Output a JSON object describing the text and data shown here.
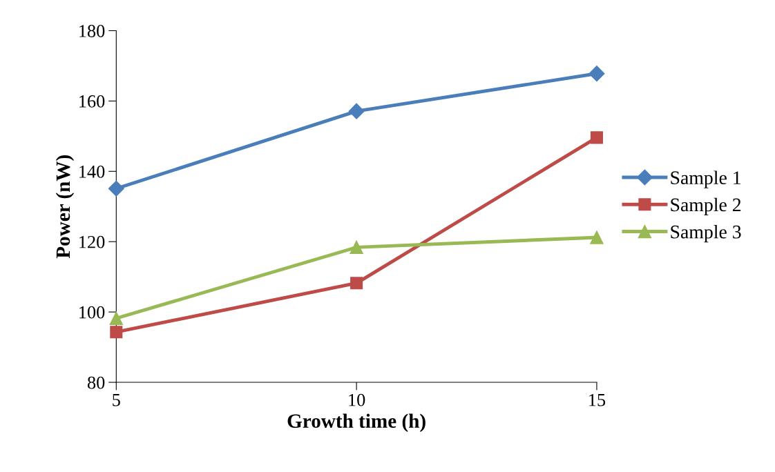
{
  "chart_data": {
    "type": "line",
    "xlabel": "Growth time (h)",
    "ylabel": "Power (nW)",
    "x": [
      5,
      10,
      15
    ],
    "xlim": [
      5,
      15
    ],
    "xticks": [
      5,
      10,
      15
    ],
    "ylim": [
      80,
      180
    ],
    "yticks": [
      80,
      100,
      120,
      140,
      160,
      180
    ],
    "grid": false,
    "legend": "right",
    "line_style": "solid",
    "series": [
      {
        "name": "Sample 1",
        "color": "#4a7ebb",
        "marker": "diamond",
        "values": [
          135.1,
          157.1,
          167.8
        ]
      },
      {
        "name": "Sample 2",
        "color": "#be4b48",
        "marker": "square",
        "values": [
          94.3,
          108.2,
          149.6
        ]
      },
      {
        "name": "Sample 3",
        "color": "#98b954",
        "marker": "triangle",
        "values": [
          98.2,
          118.4,
          121.2
        ]
      }
    ]
  }
}
